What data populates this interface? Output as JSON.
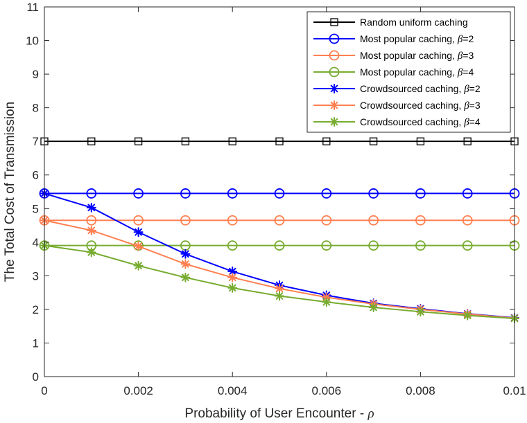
{
  "chart_data": {
    "type": "line",
    "title": "",
    "xlabel": "Probability of User Encounter - ",
    "xlabel_symbol": "ρ",
    "ylabel": "The Total Cost of Transmission",
    "xlim": [
      0,
      0.01
    ],
    "ylim": [
      0,
      11
    ],
    "x_ticks": [
      0,
      0.002,
      0.004,
      0.006,
      0.008,
      0.01
    ],
    "x_tick_labels": [
      "0",
      "0.002",
      "0.004",
      "0.006",
      "0.008",
      "0.01"
    ],
    "y_ticks": [
      0,
      1,
      2,
      3,
      4,
      5,
      6,
      7,
      8,
      9,
      10,
      11
    ],
    "y_tick_labels": [
      "0",
      "1",
      "2",
      "3",
      "4",
      "5",
      "6",
      "7",
      "8",
      "9",
      "10",
      "11"
    ],
    "grid": false,
    "legend_position": "top-right",
    "x": [
      0,
      0.001,
      0.002,
      0.003,
      0.004,
      0.005,
      0.006,
      0.007,
      0.008,
      0.009,
      0.01
    ],
    "series": [
      {
        "name": "Random uniform caching",
        "name_prefix": "Random uniform caching",
        "beta": "",
        "color": "#000000",
        "marker": "square",
        "values": [
          7,
          7,
          7,
          7,
          7,
          7,
          7,
          7,
          7,
          7,
          7
        ]
      },
      {
        "name": "Most popular caching, β=2",
        "name_prefix": "Most popular caching, ",
        "beta": "=2",
        "color": "#0000ff",
        "marker": "circle",
        "values": [
          5.45,
          5.45,
          5.45,
          5.45,
          5.45,
          5.45,
          5.45,
          5.45,
          5.45,
          5.45,
          5.45
        ]
      },
      {
        "name": "Most popular caching, β=3",
        "name_prefix": "Most popular caching, ",
        "beta": "=3",
        "color": "#ff7f50",
        "marker": "circle",
        "values": [
          4.65,
          4.65,
          4.65,
          4.65,
          4.65,
          4.65,
          4.65,
          4.65,
          4.65,
          4.65,
          4.65
        ]
      },
      {
        "name": "Most popular caching, β=4",
        "name_prefix": "Most popular caching, ",
        "beta": "=4",
        "color": "#77ac30",
        "marker": "circle",
        "values": [
          3.9,
          3.9,
          3.9,
          3.9,
          3.9,
          3.9,
          3.9,
          3.9,
          3.9,
          3.9,
          3.9
        ]
      },
      {
        "name": "Crowdsourced caching, β=2",
        "name_prefix": "Crowdsourced caching, ",
        "beta": "=2",
        "color": "#0000ff",
        "marker": "star",
        "values": [
          5.45,
          5.03,
          4.3,
          3.65,
          3.13,
          2.72,
          2.42,
          2.18,
          2.02,
          1.87,
          1.75
        ]
      },
      {
        "name": "Crowdsourced caching, β=3",
        "name_prefix": "Crowdsourced caching, ",
        "beta": "=3",
        "color": "#ff7f50",
        "marker": "star",
        "values": [
          4.65,
          4.35,
          3.88,
          3.35,
          2.95,
          2.62,
          2.36,
          2.16,
          2.0,
          1.86,
          1.74
        ]
      },
      {
        "name": "Crowdsourced caching, β=4",
        "name_prefix": "Crowdsourced caching, ",
        "beta": "=4",
        "color": "#77ac30",
        "marker": "star",
        "values": [
          3.9,
          3.7,
          3.3,
          2.95,
          2.64,
          2.4,
          2.22,
          2.06,
          1.93,
          1.82,
          1.73
        ]
      }
    ]
  }
}
